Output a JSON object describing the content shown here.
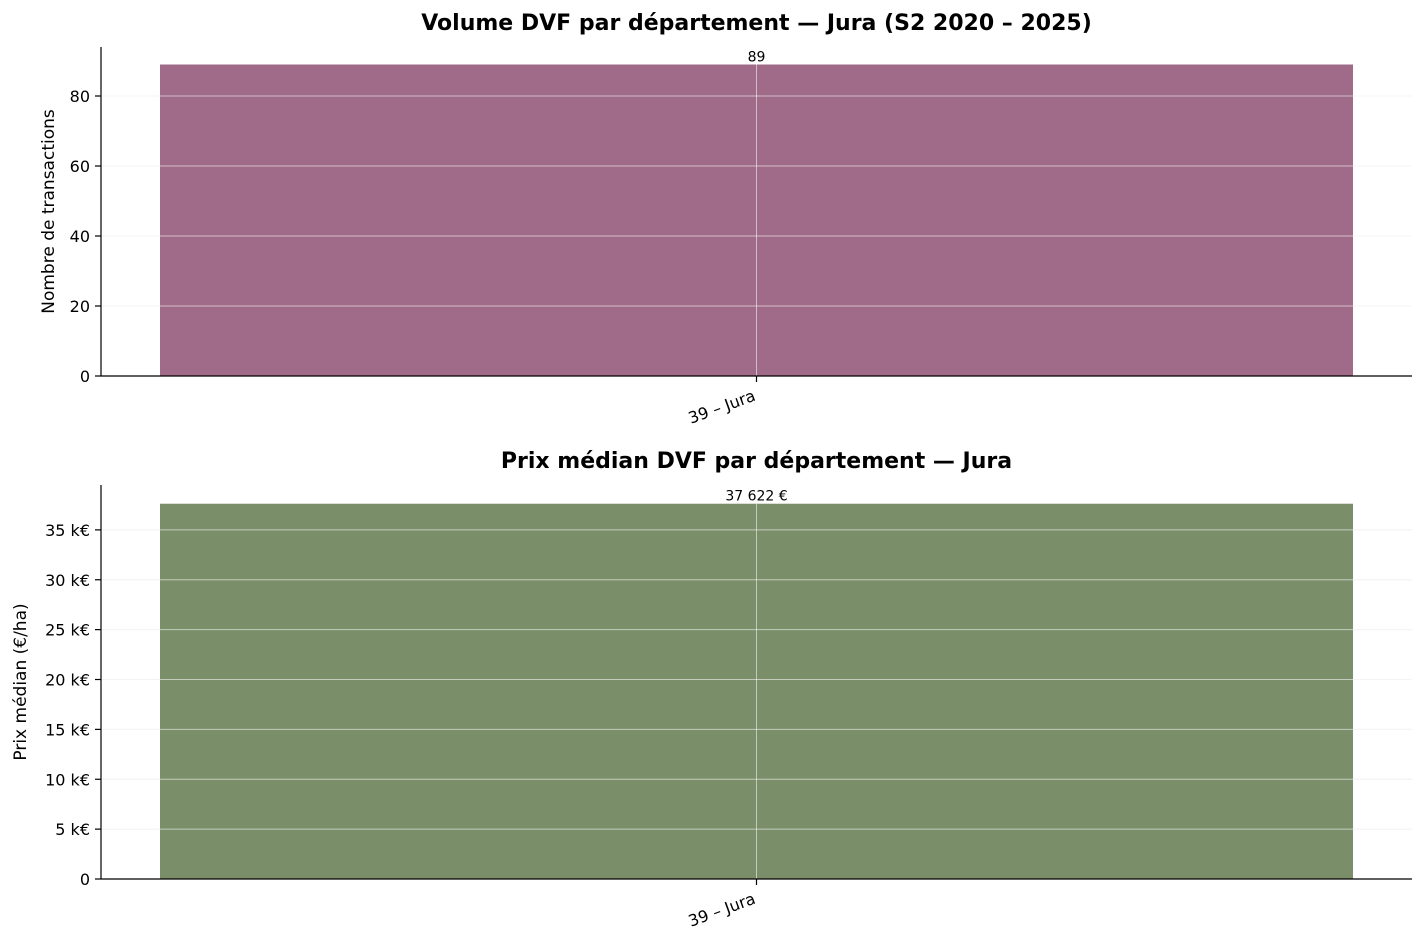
{
  "chart_data": [
    {
      "type": "bar",
      "title": "Volume DVF par département — Jura (S2 2020 – 2025)",
      "ylabel": "Nombre de transactions",
      "xlabel": "",
      "categories": [
        "39 – Jura"
      ],
      "values": [
        89
      ],
      "value_labels": [
        "89"
      ],
      "ylim": [
        0,
        94
      ],
      "yticks": [
        0,
        20,
        40,
        60,
        80
      ],
      "ytick_labels": [
        "0",
        "20",
        "40",
        "60",
        "80"
      ],
      "grid": true,
      "bar_color": "#9f6b88"
    },
    {
      "type": "bar",
      "title": "Prix médian DVF par département — Jura",
      "ylabel": "Prix médian (€/ha)",
      "xlabel": "",
      "categories": [
        "39 – Jura"
      ],
      "values": [
        37622
      ],
      "value_labels": [
        "37 622 €"
      ],
      "ylim": [
        0,
        39500
      ],
      "yticks": [
        0,
        5000,
        10000,
        15000,
        20000,
        25000,
        30000,
        35000
      ],
      "ytick_labels": [
        "0",
        "5 k€",
        "10 k€",
        "15 k€",
        "20 k€",
        "25 k€",
        "30 k€",
        "35 k€"
      ],
      "grid": true,
      "bar_color": "#7a8e6a"
    }
  ]
}
